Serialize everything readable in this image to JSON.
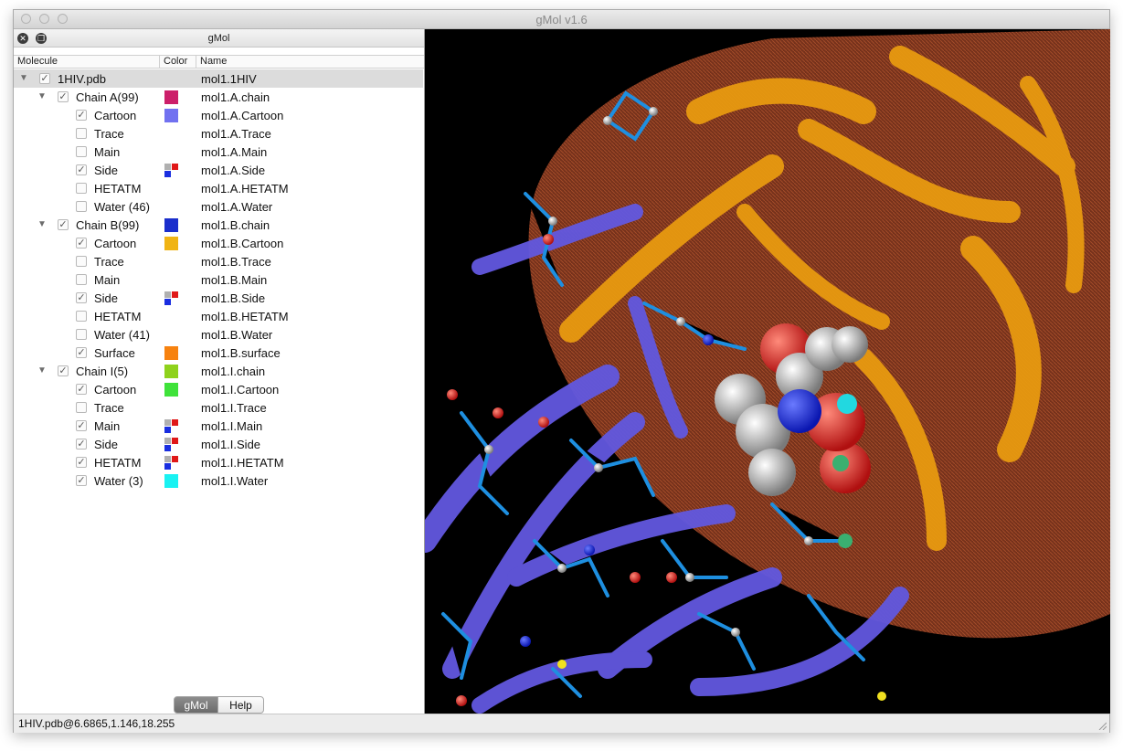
{
  "window": {
    "title": "gMol v1.6"
  },
  "panel": {
    "title": "gMol"
  },
  "columns": {
    "molecule": "Molecule",
    "color": "Color",
    "name": "Name"
  },
  "tree": [
    {
      "label": "1HIV.pdb",
      "name": "mol1.1HIV",
      "level": 0,
      "checked": true,
      "expandable": true,
      "selected": true,
      "color": null
    },
    {
      "label": "Chain A(99)",
      "name": "mol1.A.chain",
      "level": 1,
      "checked": true,
      "expandable": true,
      "color": "#cc1f6a"
    },
    {
      "label": "Cartoon",
      "name": "mol1.A.Cartoon",
      "level": 2,
      "checked": true,
      "color": "#7171f0"
    },
    {
      "label": "Trace",
      "name": "mol1.A.Trace",
      "level": 2,
      "checked": false,
      "color": null
    },
    {
      "label": "Main",
      "name": "mol1.A.Main",
      "level": 2,
      "checked": false,
      "color": null
    },
    {
      "label": "Side",
      "name": "mol1.A.Side",
      "level": 2,
      "checked": true,
      "color": "mixed"
    },
    {
      "label": "HETATM",
      "name": "mol1.A.HETATM",
      "level": 2,
      "checked": false,
      "color": null
    },
    {
      "label": "Water (46)",
      "name": "mol1.A.Water",
      "level": 2,
      "checked": false,
      "color": null
    },
    {
      "label": "Chain B(99)",
      "name": "mol1.B.chain",
      "level": 1,
      "checked": true,
      "expandable": true,
      "color": "#1a2ecc"
    },
    {
      "label": "Cartoon",
      "name": "mol1.B.Cartoon",
      "level": 2,
      "checked": true,
      "color": "#f0b414"
    },
    {
      "label": "Trace",
      "name": "mol1.B.Trace",
      "level": 2,
      "checked": false,
      "color": null
    },
    {
      "label": "Main",
      "name": "mol1.B.Main",
      "level": 2,
      "checked": false,
      "color": null
    },
    {
      "label": "Side",
      "name": "mol1.B.Side",
      "level": 2,
      "checked": true,
      "color": "mixed"
    },
    {
      "label": "HETATM",
      "name": "mol1.B.HETATM",
      "level": 2,
      "checked": false,
      "color": null
    },
    {
      "label": "Water (41)",
      "name": "mol1.B.Water",
      "level": 2,
      "checked": false,
      "color": null
    },
    {
      "label": "Surface",
      "name": "mol1.B.surface",
      "level": 2,
      "checked": true,
      "color": "#f7820f"
    },
    {
      "label": "Chain I(5)",
      "name": "mol1.I.chain",
      "level": 1,
      "checked": true,
      "expandable": true,
      "color": "#8fd21c"
    },
    {
      "label": "Cartoon",
      "name": "mol1.I.Cartoon",
      "level": 2,
      "checked": true,
      "color": "#3fe23a"
    },
    {
      "label": "Trace",
      "name": "mol1.I.Trace",
      "level": 2,
      "checked": false,
      "color": null
    },
    {
      "label": "Main",
      "name": "mol1.I.Main",
      "level": 2,
      "checked": true,
      "color": "mixed"
    },
    {
      "label": "Side",
      "name": "mol1.I.Side",
      "level": 2,
      "checked": true,
      "color": "mixed"
    },
    {
      "label": "HETATM",
      "name": "mol1.I.HETATM",
      "level": 2,
      "checked": true,
      "color": "mixed"
    },
    {
      "label": "Water (3)",
      "name": "mol1.I.Water",
      "level": 2,
      "checked": true,
      "color": "#19f2f2"
    }
  ],
  "tabs": [
    {
      "label": "gMol",
      "active": true
    },
    {
      "label": "Help",
      "active": false
    }
  ],
  "status": {
    "text": "1HIV.pdb@6.6865,1.146,18.255"
  },
  "colors": {
    "chainA": "#6b5ae6",
    "chainB": "#f0a010",
    "surface": "#a04a2c",
    "background": "#000000"
  }
}
